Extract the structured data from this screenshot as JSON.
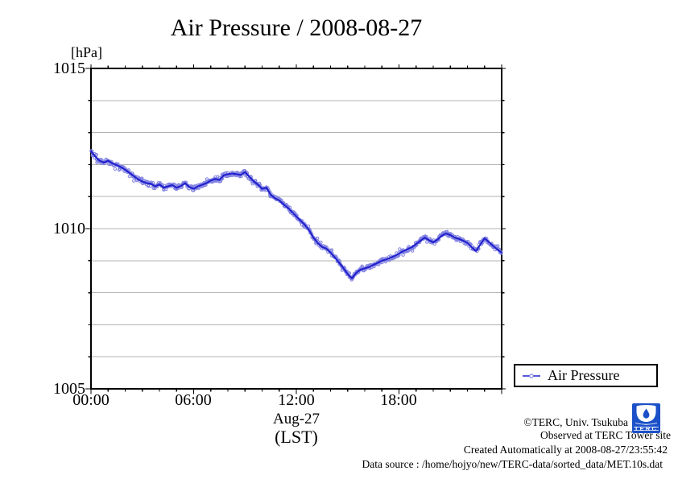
{
  "title": "Air Pressure / 2008-08-27",
  "y_unit_label": "[hPa]",
  "y_axis": {
    "labels": [
      "1015",
      "1010",
      "1005"
    ]
  },
  "x_axis": {
    "labels": [
      "00:00",
      "06:00",
      "12:00",
      "18:00"
    ],
    "date_label": "Aug-27",
    "tz_label": "(LST)"
  },
  "legend": {
    "label": "Air Pressure"
  },
  "footer": {
    "copyright": "©TERC, Univ. Tsukuba",
    "observed": "Observed at TERC Tower site",
    "created": "Created Automatically at 2008-08-27/23:55:42",
    "datasource": "Data source : /home/hojyo/new/TERC-data/sorted_data/MET.10s.dat"
  },
  "logo": {
    "text": "TERC",
    "color": "#1b50c8"
  },
  "colors": {
    "line": "#2020cc",
    "marker": "#8282e2",
    "grid": "#b3b3b3",
    "frame": "#000000"
  },
  "chart_data": {
    "type": "line",
    "title": "Air Pressure / 2008-08-27",
    "xlabel": "Aug-27 (LST)",
    "ylabel": "[hPa]",
    "xlim_hours": [
      0,
      24
    ],
    "ylim": [
      1005,
      1015
    ],
    "x_major_ticks_hours": [
      0,
      6,
      12,
      18,
      24
    ],
    "x_minor_tick_step_hours": 1,
    "y_major_ticks": [
      1005,
      1010,
      1015
    ],
    "y_minor_tick_step": 1,
    "grid": "horizontal gray lines every 1 hPa",
    "legend_position": "outside bottom-right",
    "series": [
      {
        "name": "Air Pressure",
        "style": "dark blue line with light blue open-circle markers",
        "x_hours": [
          0,
          0.25,
          0.5,
          0.75,
          1,
          1.25,
          1.5,
          1.75,
          2,
          2.25,
          2.5,
          2.75,
          3,
          3.25,
          3.5,
          3.75,
          4,
          4.25,
          4.5,
          4.75,
          5,
          5.25,
          5.5,
          5.75,
          6,
          6.25,
          6.5,
          6.75,
          7,
          7.25,
          7.5,
          7.75,
          8,
          8.25,
          8.5,
          8.75,
          9,
          9.25,
          9.5,
          9.75,
          10,
          10.25,
          10.5,
          10.75,
          11,
          11.25,
          11.5,
          11.75,
          12,
          12.25,
          12.5,
          12.75,
          13,
          13.25,
          13.5,
          13.75,
          14,
          14.25,
          14.5,
          14.75,
          15,
          15.25,
          15.5,
          15.75,
          16,
          16.25,
          16.5,
          16.75,
          17,
          17.25,
          17.5,
          17.75,
          18,
          18.25,
          18.5,
          18.75,
          19,
          19.25,
          19.5,
          19.75,
          20,
          20.25,
          20.5,
          20.75,
          21,
          21.25,
          21.5,
          21.75,
          22,
          22.25,
          22.5,
          22.75,
          23,
          23.25,
          23.5,
          23.75,
          24
        ],
        "values": [
          1012.42,
          1012.25,
          1012.12,
          1012.06,
          1012.12,
          1012.04,
          1011.98,
          1011.92,
          1011.84,
          1011.74,
          1011.64,
          1011.54,
          1011.47,
          1011.42,
          1011.4,
          1011.32,
          1011.38,
          1011.28,
          1011.32,
          1011.36,
          1011.28,
          1011.33,
          1011.42,
          1011.3,
          1011.24,
          1011.32,
          1011.37,
          1011.42,
          1011.5,
          1011.55,
          1011.52,
          1011.66,
          1011.7,
          1011.72,
          1011.7,
          1011.67,
          1011.77,
          1011.62,
          1011.48,
          1011.38,
          1011.24,
          1011.28,
          1011.06,
          1010.95,
          1010.88,
          1010.76,
          1010.65,
          1010.52,
          1010.38,
          1010.25,
          1010.12,
          1009.95,
          1009.72,
          1009.55,
          1009.43,
          1009.38,
          1009.25,
          1009.1,
          1008.94,
          1008.77,
          1008.58,
          1008.45,
          1008.62,
          1008.72,
          1008.76,
          1008.8,
          1008.87,
          1008.93,
          1009,
          1009.04,
          1009.09,
          1009.15,
          1009.22,
          1009.3,
          1009.36,
          1009.42,
          1009.52,
          1009.62,
          1009.72,
          1009.64,
          1009.57,
          1009.66,
          1009.78,
          1009.85,
          1009.8,
          1009.72,
          1009.68,
          1009.62,
          1009.55,
          1009.42,
          1009.3,
          1009.5,
          1009.7,
          1009.58,
          1009.46,
          1009.35,
          1009.25
        ]
      }
    ]
  }
}
